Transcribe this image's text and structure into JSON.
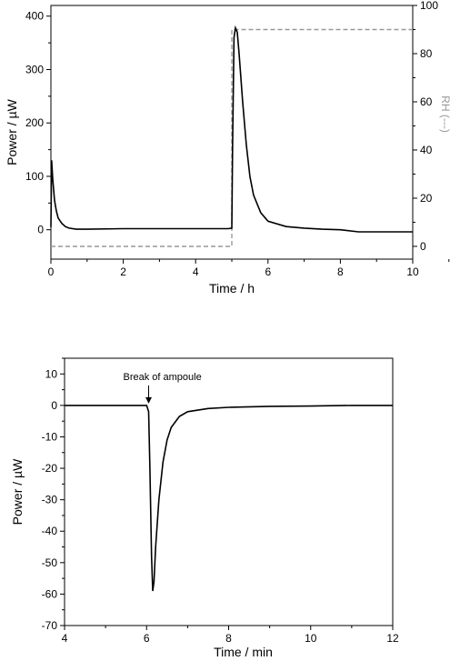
{
  "chart_data": [
    {
      "type": "line",
      "xlabel": "Time / h",
      "ylabel": "Power / µW",
      "y2label": "RH (---)",
      "xlim": [
        0,
        10
      ],
      "ylim": [
        -55,
        420
      ],
      "y2lim": [
        -5.3,
        100
      ],
      "x_ticks": [
        "0",
        "2",
        "4",
        "6",
        "8",
        "10"
      ],
      "y_ticks": [
        "0",
        "100",
        "200",
        "300",
        "400"
      ],
      "y2_ticks": [
        "0",
        "20",
        "40",
        "60",
        "80",
        "100"
      ],
      "colors": {
        "power": "#000000",
        "rh": "#999999"
      },
      "series": [
        {
          "axis": "left",
          "style": "solid",
          "x": [
            0,
            0.02,
            0.05,
            0.1,
            0.15,
            0.2,
            0.3,
            0.4,
            0.5,
            0.7,
            1.0,
            2.0,
            3.0,
            4.0,
            4.9,
            5.0,
            5.02,
            5.06,
            5.1,
            5.15,
            5.2,
            5.3,
            5.4,
            5.5,
            5.6,
            5.8,
            6.0,
            6.5,
            7.0,
            7.5,
            8.0,
            8.5,
            9.0,
            10.0
          ],
          "y": [
            5,
            130,
            95,
            55,
            35,
            22,
            12,
            6,
            3,
            1,
            1,
            2,
            2,
            2,
            2,
            3,
            150,
            360,
            378,
            370,
            330,
            240,
            160,
            100,
            65,
            32,
            16,
            6,
            3,
            1,
            0,
            -4,
            -4,
            -4
          ]
        },
        {
          "axis": "right",
          "style": "dashed",
          "x": [
            0,
            5.0,
            5.0,
            10.0
          ],
          "y": [
            0,
            0,
            90,
            90
          ]
        }
      ]
    },
    {
      "type": "line",
      "xlabel": "Time / min",
      "ylabel": "Power / µW",
      "xlim": [
        4,
        12
      ],
      "ylim": [
        -70,
        15
      ],
      "x_ticks": [
        "4",
        "6",
        "8",
        "10",
        "12"
      ],
      "y_ticks": [
        "10",
        "0",
        "-10",
        "-20",
        "-30",
        "-40",
        "-50",
        "-60",
        "-70"
      ],
      "annotation": {
        "text": "Break of ampoule",
        "x": 6.05,
        "y": 0
      },
      "colors": {
        "power": "#000000"
      },
      "series": [
        {
          "x": [
            4,
            5,
            6.0,
            6.05,
            6.08,
            6.12,
            6.15,
            6.18,
            6.22,
            6.3,
            6.4,
            6.5,
            6.6,
            6.8,
            7.0,
            7.5,
            8.0,
            9.0,
            10.0,
            11.0,
            12.0
          ],
          "y": [
            0,
            0,
            0,
            -2,
            -20,
            -48,
            -59,
            -56,
            -45,
            -30,
            -18,
            -11,
            -7,
            -3.5,
            -2,
            -1,
            -0.6,
            -0.3,
            -0.2,
            0,
            0
          ]
        }
      ]
    }
  ]
}
